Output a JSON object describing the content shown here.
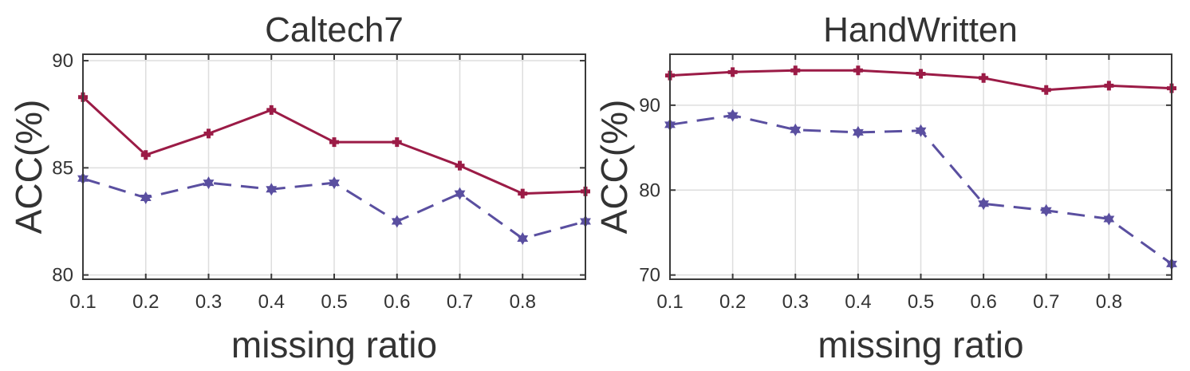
{
  "chart_data": [
    {
      "type": "line",
      "title": "Caltech7",
      "xlabel": "missing ratio",
      "ylabel": "ACC(%)",
      "xlim": [
        0.1,
        0.9
      ],
      "ylim": [
        79.8,
        90.3
      ],
      "xticks": [
        "0.1",
        "0.2",
        "0.3",
        "0.4",
        "0.5",
        "0.6",
        "0.7",
        "0.8"
      ],
      "yticks": [
        80,
        85,
        90
      ],
      "grid": true,
      "x": [
        0.1,
        0.2,
        0.3,
        0.4,
        0.5,
        0.6,
        0.7,
        0.8,
        0.9
      ],
      "series": [
        {
          "color": "#9b1b46",
          "style": "solid",
          "marker": "plus",
          "values": [
            88.3,
            85.6,
            86.6,
            87.7,
            86.2,
            86.2,
            85.1,
            83.8,
            83.9
          ]
        },
        {
          "color": "#5a4fa0",
          "style": "dashed",
          "marker": "hexagram",
          "values": [
            84.5,
            83.6,
            84.3,
            84.0,
            84.3,
            82.5,
            83.8,
            81.7,
            82.5
          ]
        }
      ]
    },
    {
      "type": "line",
      "title": "HandWritten",
      "xlabel": "missing ratio",
      "ylabel": "ACC(%)",
      "xlim": [
        0.1,
        0.9
      ],
      "ylim": [
        69.5,
        96
      ],
      "xticks": [
        "0.1",
        "0.2",
        "0.3",
        "0.4",
        "0.5",
        "0.6",
        "0.7",
        "0.8"
      ],
      "yticks": [
        70,
        80,
        90
      ],
      "grid": true,
      "x": [
        0.1,
        0.2,
        0.3,
        0.4,
        0.5,
        0.6,
        0.7,
        0.8,
        0.9
      ],
      "series": [
        {
          "color": "#9b1b46",
          "style": "solid",
          "marker": "plus",
          "values": [
            93.5,
            93.9,
            94.1,
            94.1,
            93.7,
            93.2,
            91.8,
            92.3,
            92.0
          ]
        },
        {
          "color": "#5a4fa0",
          "style": "dashed",
          "marker": "hexagram",
          "values": [
            87.7,
            88.8,
            87.1,
            86.8,
            87.0,
            78.4,
            77.6,
            76.6,
            71.3
          ]
        }
      ]
    }
  ]
}
